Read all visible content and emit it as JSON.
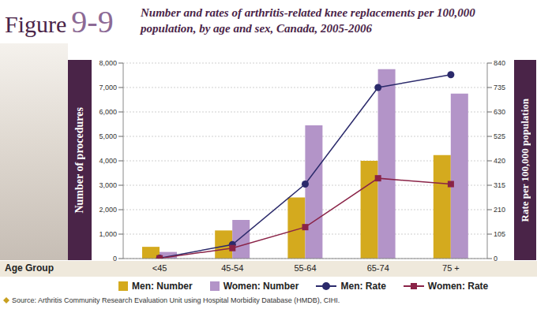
{
  "chart_data": {
    "type": "bar",
    "figure": "Figure",
    "figure_number": "9-9",
    "title": "Number and rates of arthritis-related knee replacements per 100,000 population, by age and sex, Canada, 2005-2006",
    "x_label": "Age Group",
    "y_label": "Number of procedures",
    "y2_label": "Rate per 100,000 population",
    "source": "Source: Arthritis Community Research Evaluation Unit using Hospital Morbidity Database (HMDB), CIHI.",
    "categories": [
      "<45",
      "45-54",
      "55-64",
      "65-74",
      "75 +"
    ],
    "series": [
      {
        "name": "Men: Number",
        "type": "bar",
        "color": "#d4aa1e",
        "values": [
          480,
          1150,
          2500,
          4000,
          4230
        ]
      },
      {
        "name": "Women: Number",
        "type": "bar",
        "color": "#b394c8",
        "values": [
          270,
          1580,
          5450,
          7750,
          6750
        ]
      },
      {
        "name": "Men: Rate",
        "type": "line",
        "axis": "y2",
        "color": "#2b2a6b",
        "marker": "circle",
        "values": [
          2,
          60,
          320,
          735,
          790
        ]
      },
      {
        "name": "Women: Rate",
        "type": "line",
        "axis": "y2",
        "color": "#8a2347",
        "marker": "square",
        "values": [
          1,
          45,
          135,
          345,
          320
        ]
      }
    ],
    "ylim": [
      0,
      8000
    ],
    "yticks": [
      0,
      {
        "value": 1000,
        "label": "1,000"
      },
      {
        "value": 2000,
        "label": "2,000"
      },
      {
        "value": 3000,
        "label": "3,000"
      },
      {
        "value": 4000,
        "label": "4,000"
      },
      {
        "value": 5000,
        "label": "5,000"
      },
      {
        "value": 6000,
        "label": "6,000"
      },
      {
        "value": 7000,
        "label": "7,000"
      },
      {
        "value": 8000,
        "label": "8,000"
      }
    ],
    "y2lim": [
      0,
      840
    ],
    "y2ticks": [
      0,
      105,
      210,
      315,
      420,
      525,
      630,
      735,
      840
    ],
    "grid": true,
    "legend": "bottom"
  }
}
